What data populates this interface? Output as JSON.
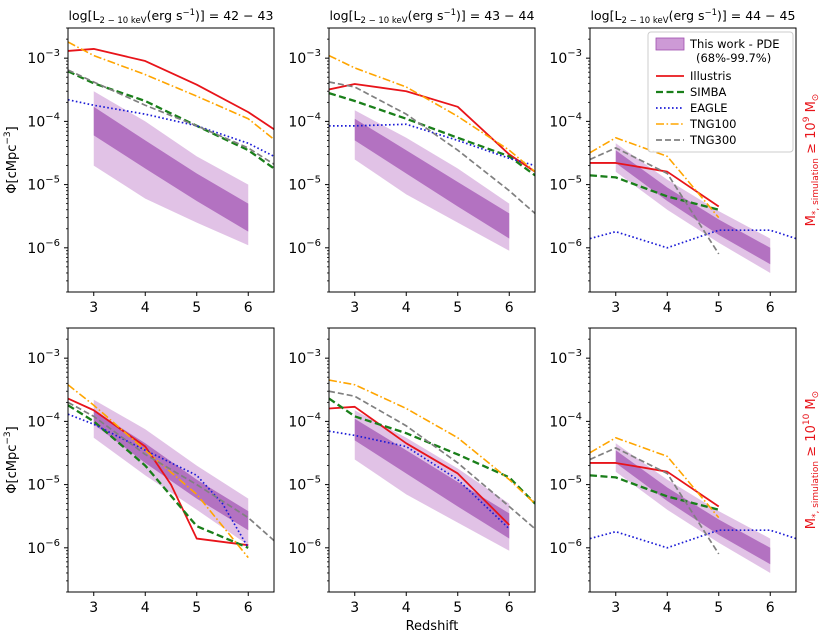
{
  "figure": {
    "column_titles": [
      {
        "main": "log[L",
        "sub": "2 − 10 keV",
        "post": "(erg s",
        "sup": "−1",
        "end": ")] = 42 − 43"
      },
      {
        "main": "log[L",
        "sub": "2 − 10 keV",
        "post": "(erg s",
        "sup": "−1",
        "end": ")] = 43 − 44"
      },
      {
        "main": "log[L",
        "sub": "2 − 10 keV",
        "post": "(erg s",
        "sup": "−1",
        "end": ")] = 44 − 45"
      }
    ],
    "row_labels": [
      {
        "main": "M",
        "sub": "*, simulation",
        "mid": " ≥ 10",
        "sup": "9",
        "end": " M",
        "sub2": "⊙"
      },
      {
        "main": "M",
        "sub": "*, simulation",
        "mid": " ≥ 10",
        "sup": "10",
        "end": " M",
        "sub2": "⊙"
      }
    ],
    "xlabel": "Redshift",
    "ylabel": {
      "main": "Φ[cMpc",
      "sup": "−3",
      "end": "]"
    },
    "xticks": [
      3,
      4,
      5,
      6
    ],
    "xlim": [
      2.5,
      6.5
    ],
    "ylim": [
      2e-07,
      0.003
    ],
    "yticks": [
      {
        "value": 1e-06,
        "base": "10",
        "exp": "−6"
      },
      {
        "value": 1e-05,
        "base": "10",
        "exp": "−5"
      },
      {
        "value": 0.0001,
        "base": "10",
        "exp": "−4"
      },
      {
        "value": 0.001,
        "base": "10",
        "exp": "−3"
      }
    ]
  },
  "legend": {
    "entries": [
      {
        "key": "pde",
        "label": "This work - PDE",
        "label2": "(68%-99.7%)"
      },
      {
        "key": "illustris",
        "label": "Illustris"
      },
      {
        "key": "simba",
        "label": "SIMBA"
      },
      {
        "key": "eagle",
        "label": "EAGLE"
      },
      {
        "key": "tng100",
        "label": "TNG100"
      },
      {
        "key": "tng300",
        "label": "TNG300"
      }
    ]
  },
  "colors": {
    "illustris": "#e8141a",
    "simba": "#1a7f1a",
    "eagle": "#1c1cd6",
    "tng100": "#ffa500",
    "tng300": "#808080",
    "pde_inner": "#a050b0",
    "pde_outer": "#c88fd2"
  },
  "chart_data": [
    {
      "type": "line",
      "row": 0,
      "col": 0,
      "title": "log[L 2-10 keV (erg s-1)] = 42 - 43",
      "series": [
        {
          "name": "Illustris",
          "key": "illustris",
          "x": [
            2.5,
            3,
            4,
            5,
            6,
            6.5
          ],
          "y": [
            0.0013,
            0.0014,
            0.0009,
            0.00038,
            0.00014,
            7.5e-05
          ]
        },
        {
          "name": "SIMBA",
          "key": "simba",
          "x": [
            2.5,
            3,
            4,
            5,
            6,
            6.5
          ],
          "y": [
            0.00062,
            0.0004,
            0.00021,
            8.5e-05,
            3.5e-05,
            1.8e-05
          ]
        },
        {
          "name": "EAGLE",
          "key": "eagle",
          "x": [
            2.5,
            3,
            4,
            5,
            6,
            6.5
          ],
          "y": [
            0.00022,
            0.00018,
            0.00013,
            8.5e-05,
            4.5e-05,
            2.8e-05
          ]
        },
        {
          "name": "TNG100",
          "key": "tng100",
          "x": [
            2.5,
            3,
            4,
            5,
            6,
            6.5
          ],
          "y": [
            0.0018,
            0.0011,
            0.00055,
            0.00025,
            0.00011,
            5.2e-05
          ]
        },
        {
          "name": "TNG300",
          "key": "tng300",
          "x": [
            2.5,
            3,
            4,
            5,
            6,
            6.5
          ],
          "y": [
            0.00065,
            0.00042,
            0.00018,
            8.5e-05,
            3.8e-05,
            2.1e-05
          ]
        }
      ],
      "bands": {
        "x": [
          3,
          4,
          5,
          6
        ],
        "inner_low": [
          6e-05,
          1.8e-05,
          5.5e-06,
          1.8e-06
        ],
        "inner_high": [
          0.00017,
          5e-05,
          1.5e-05,
          5e-06
        ],
        "outer_low": [
          2e-05,
          6e-06,
          2.5e-06,
          1.1e-06
        ],
        "outer_high": [
          0.0003,
          0.0001,
          2.8e-05,
          1e-05
        ]
      }
    },
    {
      "type": "line",
      "row": 0,
      "col": 1,
      "title": "log[L 2-10 keV (erg s-1)] = 43 - 44",
      "series": [
        {
          "name": "Illustris",
          "key": "illustris",
          "x": [
            2.5,
            3,
            4,
            5,
            6,
            6.5
          ],
          "y": [
            0.00032,
            0.00039,
            0.0003,
            0.00017,
            3e-05,
            1.6e-05
          ]
        },
        {
          "name": "SIMBA",
          "key": "simba",
          "x": [
            2.5,
            3,
            4,
            5,
            6,
            6.5
          ],
          "y": [
            0.00028,
            0.00021,
            0.00011,
            5.5e-05,
            2.8e-05,
            1.4e-05
          ]
        },
        {
          "name": "EAGLE",
          "key": "eagle",
          "x": [
            2.5,
            3,
            4,
            5,
            6,
            6.5
          ],
          "y": [
            8.5e-05,
            8.5e-05,
            9e-05,
            5e-05,
            2.6e-05,
            2e-05
          ]
        },
        {
          "name": "TNG100",
          "key": "tng100",
          "x": [
            2.5,
            3,
            4,
            5,
            6,
            6.5
          ],
          "y": [
            0.0011,
            0.0007,
            0.00035,
            0.00012,
            3.5e-05,
            1.6e-05
          ]
        },
        {
          "name": "TNG300",
          "key": "tng300",
          "x": [
            2.5,
            3,
            4,
            5,
            6,
            6.5
          ],
          "y": [
            0.00042,
            0.00035,
            0.00013,
            3.5e-05,
            8e-06,
            3.5e-06
          ]
        }
      ],
      "bands": {
        "x": [
          3,
          4,
          5,
          6
        ],
        "inner_low": [
          5e-05,
          1.5e-05,
          4.5e-06,
          1.4e-06
        ],
        "inner_high": [
          0.00011,
          3.5e-05,
          1.1e-05,
          3.5e-06
        ],
        "outer_low": [
          2.5e-05,
          7e-06,
          2.5e-06,
          9e-07
        ],
        "outer_high": [
          0.00015,
          5.5e-05,
          1.8e-05,
          5e-06
        ]
      }
    },
    {
      "type": "line",
      "row": 0,
      "col": 2,
      "title": "log[L 2-10 keV (erg s-1)] = 44 - 45",
      "series": [
        {
          "name": "Illustris",
          "key": "illustris",
          "x": [
            2.5,
            3,
            4,
            5
          ],
          "y": [
            2.2e-05,
            2.2e-05,
            1.6e-05,
            4.5e-06
          ]
        },
        {
          "name": "SIMBA",
          "key": "simba",
          "x": [
            2.5,
            3,
            4,
            5
          ],
          "y": [
            1.4e-05,
            1.3e-05,
            6.5e-06,
            4e-06
          ]
        },
        {
          "name": "EAGLE",
          "key": "eagle",
          "x": [
            2.5,
            3,
            4,
            5,
            6,
            6.5
          ],
          "y": [
            1.4e-06,
            1.8e-06,
            1e-06,
            1.9e-06,
            1.9e-06,
            1.4e-06
          ]
        },
        {
          "name": "TNG100",
          "key": "tng100",
          "x": [
            2.5,
            3,
            4,
            5
          ],
          "y": [
            3.2e-05,
            5.5e-05,
            2.8e-05,
            3e-06
          ]
        },
        {
          "name": "TNG300",
          "key": "tng300",
          "x": [
            2.5,
            3,
            4,
            5
          ],
          "y": [
            2.5e-05,
            3.8e-05,
            1.5e-05,
            8e-07
          ]
        }
      ],
      "bands": {
        "x": [
          3,
          4,
          5,
          6
        ],
        "inner_low": [
          2.2e-05,
          5.5e-06,
          1.6e-06,
          5.5e-07
        ],
        "inner_high": [
          3.5e-05,
          9e-06,
          2.8e-06,
          1e-06
        ],
        "outer_low": [
          1.6e-05,
          4e-06,
          1.2e-06,
          4e-07
        ],
        "outer_high": [
          4.5e-05,
          1.2e-05,
          3.8e-06,
          1.4e-06
        ]
      }
    },
    {
      "type": "line",
      "row": 1,
      "col": 0,
      "title": "",
      "series": [
        {
          "name": "Illustris",
          "key": "illustris",
          "x": [
            2.5,
            3,
            4,
            4.5,
            5,
            6
          ],
          "y": [
            0.00023,
            0.00015,
            4e-05,
            1e-05,
            1.4e-06,
            1.1e-06
          ]
        },
        {
          "name": "SIMBA",
          "key": "simba",
          "x": [
            2.5,
            3,
            4,
            5,
            6
          ],
          "y": [
            0.00018,
            0.0001,
            2e-05,
            2.2e-06,
            1e-06
          ]
        },
        {
          "name": "EAGLE",
          "key": "eagle",
          "x": [
            2.5,
            3,
            4,
            5,
            5.5,
            6
          ],
          "y": [
            0.00013,
            9e-05,
            3.5e-05,
            1.4e-05,
            5e-06,
            1e-06
          ]
        },
        {
          "name": "TNG100",
          "key": "tng100",
          "x": [
            2.5,
            3,
            4,
            5,
            6
          ],
          "y": [
            0.00038,
            0.00018,
            3.5e-05,
            7e-06,
            7e-07
          ]
        },
        {
          "name": "TNG300",
          "key": "tng300",
          "x": [
            2.5,
            3,
            4,
            5,
            6,
            6.5
          ],
          "y": [
            0.0002,
            0.00012,
            3e-05,
            1e-05,
            3e-06,
            1.3e-06
          ]
        }
      ],
      "bands": {
        "x": [
          3,
          4,
          5,
          6
        ],
        "inner_low": [
          9e-05,
          2.2e-05,
          6e-06,
          1.9e-06
        ],
        "inner_high": [
          0.00015,
          4.5e-05,
          1.2e-05,
          3.8e-06
        ],
        "outer_low": [
          5.5e-05,
          1.4e-05,
          4e-06,
          1.1e-06
        ],
        "outer_high": [
          0.00022,
          7.5e-05,
          2e-05,
          6e-06
        ]
      }
    },
    {
      "type": "line",
      "row": 1,
      "col": 1,
      "title": "",
      "series": [
        {
          "name": "Illustris",
          "key": "illustris",
          "x": [
            2.5,
            3,
            4,
            5,
            6
          ],
          "y": [
            0.00016,
            0.00017,
            4.5e-05,
            1.5e-05,
            2.3e-06
          ]
        },
        {
          "name": "SIMBA",
          "key": "simba",
          "x": [
            2.5,
            3,
            4,
            5,
            6,
            6.5
          ],
          "y": [
            0.00023,
            0.00012,
            6.5e-05,
            3e-05,
            1.3e-05,
            5e-06
          ]
        },
        {
          "name": "EAGLE",
          "key": "eagle",
          "x": [
            2.5,
            3,
            4,
            5,
            6
          ],
          "y": [
            7e-05,
            6e-05,
            4e-05,
            1.2e-05,
            2e-06
          ]
        },
        {
          "name": "TNG100",
          "key": "tng100",
          "x": [
            2.5,
            3,
            4,
            5,
            6,
            6.5
          ],
          "y": [
            0.00045,
            0.00038,
            0.00016,
            5.5e-05,
            1.2e-05,
            5e-06
          ]
        },
        {
          "name": "TNG300",
          "key": "tng300",
          "x": [
            2.5,
            3,
            4,
            5,
            6,
            6.5
          ],
          "y": [
            0.0003,
            0.00025,
            8.5e-05,
            2.2e-05,
            4.5e-06,
            2e-06
          ]
        }
      ],
      "bands": {
        "x": [
          3,
          4,
          5,
          6
        ],
        "inner_low": [
          5e-05,
          1.5e-05,
          4.5e-06,
          1.4e-06
        ],
        "inner_high": [
          0.00011,
          3.5e-05,
          1.1e-05,
          3.5e-06
        ],
        "outer_low": [
          2.5e-05,
          7e-06,
          2.5e-06,
          9e-07
        ],
        "outer_high": [
          0.00015,
          5.5e-05,
          1.8e-05,
          5e-06
        ]
      }
    },
    {
      "type": "line",
      "row": 1,
      "col": 2,
      "title": "",
      "series": [
        {
          "name": "Illustris",
          "key": "illustris",
          "x": [
            2.5,
            3,
            4,
            5
          ],
          "y": [
            2.2e-05,
            2.2e-05,
            1.6e-05,
            4.5e-06
          ]
        },
        {
          "name": "SIMBA",
          "key": "simba",
          "x": [
            2.5,
            3,
            4,
            5
          ],
          "y": [
            1.4e-05,
            1.3e-05,
            6.5e-06,
            4e-06
          ]
        },
        {
          "name": "EAGLE",
          "key": "eagle",
          "x": [
            2.5,
            3,
            4,
            5,
            6,
            6.5
          ],
          "y": [
            1.4e-06,
            1.8e-06,
            1e-06,
            1.9e-06,
            1.9e-06,
            1.4e-06
          ]
        },
        {
          "name": "TNG100",
          "key": "tng100",
          "x": [
            2.5,
            3,
            4,
            5
          ],
          "y": [
            3.2e-05,
            5.5e-05,
            2.8e-05,
            3e-06
          ]
        },
        {
          "name": "TNG300",
          "key": "tng300",
          "x": [
            2.5,
            3,
            4,
            5
          ],
          "y": [
            2.5e-05,
            3.8e-05,
            1.5e-05,
            8e-07
          ]
        }
      ],
      "bands": {
        "x": [
          3,
          4,
          5,
          6
        ],
        "inner_low": [
          2.2e-05,
          5.5e-06,
          1.6e-06,
          5.5e-07
        ],
        "inner_high": [
          3.5e-05,
          9e-06,
          2.8e-06,
          1e-06
        ],
        "outer_low": [
          1.6e-05,
          4e-06,
          1.2e-06,
          4e-07
        ],
        "outer_high": [
          4.5e-05,
          1.2e-05,
          3.8e-06,
          1.4e-06
        ]
      }
    }
  ]
}
